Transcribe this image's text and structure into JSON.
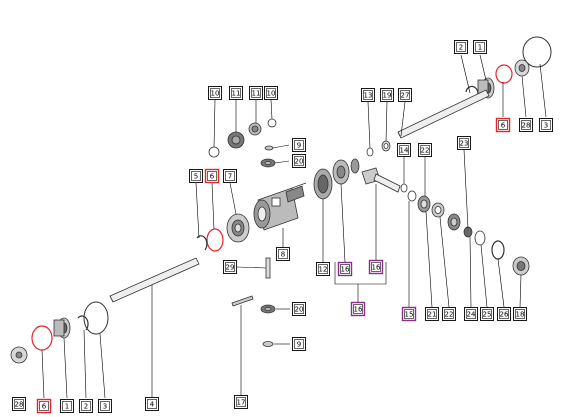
{
  "diagram": {
    "callouts": [
      {
        "id": "c-2-top",
        "text": "2",
        "style": "normal"
      },
      {
        "id": "c-1-top",
        "text": "1",
        "style": "normal"
      },
      {
        "id": "c-3-top",
        "text": "3",
        "style": "normal"
      },
      {
        "id": "c-28-top",
        "text": "28",
        "style": "normal"
      },
      {
        "id": "c-6-top",
        "text": "6",
        "style": "red"
      },
      {
        "id": "c-13",
        "text": "13",
        "style": "normal"
      },
      {
        "id": "c-19",
        "text": "19",
        "style": "normal"
      },
      {
        "id": "c-27",
        "text": "27",
        "style": "normal"
      },
      {
        "id": "c-14",
        "text": "14",
        "style": "normal"
      },
      {
        "id": "c-22-a",
        "text": "22",
        "style": "normal"
      },
      {
        "id": "c-23",
        "text": "23",
        "style": "normal"
      },
      {
        "id": "c-10-a",
        "text": "10",
        "style": "normal"
      },
      {
        "id": "c-11-a",
        "text": "11",
        "style": "normal"
      },
      {
        "id": "c-11-b",
        "text": "11",
        "style": "normal"
      },
      {
        "id": "c-10-b",
        "text": "10",
        "style": "normal"
      },
      {
        "id": "c-9-top",
        "text": "9",
        "style": "normal"
      },
      {
        "id": "c-20-top",
        "text": "20",
        "style": "normal"
      },
      {
        "id": "c-5",
        "text": "5",
        "style": "normal"
      },
      {
        "id": "c-6-mid",
        "text": "6",
        "style": "red"
      },
      {
        "id": "c-7",
        "text": "7",
        "style": "normal"
      },
      {
        "id": "c-8",
        "text": "8",
        "style": "normal"
      },
      {
        "id": "c-29",
        "text": "29",
        "style": "normal"
      },
      {
        "id": "c-12",
        "text": "12",
        "style": "normal"
      },
      {
        "id": "c-16-a",
        "text": "16",
        "style": "purple"
      },
      {
        "id": "c-16-b",
        "text": "16",
        "style": "purple"
      },
      {
        "id": "c-16-c",
        "text": "16",
        "style": "purple"
      },
      {
        "id": "c-15",
        "text": "15",
        "style": "purple"
      },
      {
        "id": "c-21",
        "text": "21",
        "style": "normal"
      },
      {
        "id": "c-22-b",
        "text": "22",
        "style": "normal"
      },
      {
        "id": "c-24",
        "text": "24",
        "style": "normal"
      },
      {
        "id": "c-25",
        "text": "25",
        "style": "normal"
      },
      {
        "id": "c-26",
        "text": "26",
        "style": "normal"
      },
      {
        "id": "c-18",
        "text": "18",
        "style": "normal"
      },
      {
        "id": "c-20-bot",
        "text": "20",
        "style": "normal"
      },
      {
        "id": "c-9-bot",
        "text": "9",
        "style": "normal"
      },
      {
        "id": "c-17",
        "text": "17",
        "style": "normal"
      },
      {
        "id": "c-4",
        "text": "4",
        "style": "normal"
      },
      {
        "id": "c-28-bot",
        "text": "28",
        "style": "normal"
      },
      {
        "id": "c-6-bot",
        "text": "6",
        "style": "red"
      },
      {
        "id": "c-1-bot",
        "text": "1",
        "style": "normal"
      },
      {
        "id": "c-2-bot",
        "text": "2",
        "style": "normal"
      },
      {
        "id": "c-3-bot",
        "text": "3",
        "style": "normal"
      }
    ],
    "colors": {
      "line": "#000000",
      "part_stroke": "#333333",
      "part_fill": "#e6e6e6",
      "part_dark": "#555555",
      "red_highlight": "#e8232a",
      "purple_highlight": "#8b2d8b",
      "callout_fill": "#ffffff"
    }
  }
}
